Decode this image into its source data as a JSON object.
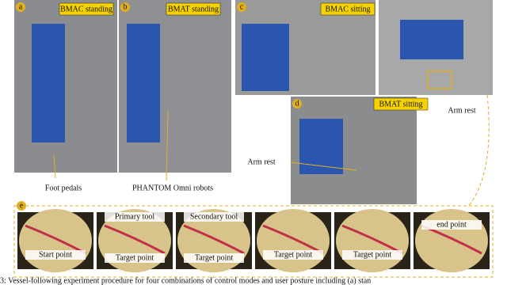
{
  "panels": [
    {
      "letter": "a",
      "label": "BMAC standing"
    },
    {
      "letter": "b",
      "label": "BMAT standing"
    },
    {
      "letter": "c",
      "label": "BMAC sitting"
    },
    {
      "letter": "d",
      "label": "BMAT sitting"
    }
  ],
  "annotations": {
    "foot_pedals": "Foot pedals",
    "robots": "PHANTOM Omni robots",
    "arm_rest_top": "Arm rest",
    "arm_rest_left": "Arm rest"
  },
  "sequence": {
    "letter": "e",
    "frames": [
      {
        "labels": [
          "Start point"
        ]
      },
      {
        "labels": [
          "Primary tool",
          "Target point"
        ]
      },
      {
        "labels": [
          "Secondary tool",
          "Target point"
        ]
      },
      {
        "labels": [
          "Target point"
        ]
      },
      {
        "labels": [
          "Target point"
        ]
      },
      {
        "labels": [
          "end point"
        ]
      }
    ]
  },
  "caption": "3: Vessel-following experiment procedure for four combinations of control modes and user posture including (a) stan"
}
